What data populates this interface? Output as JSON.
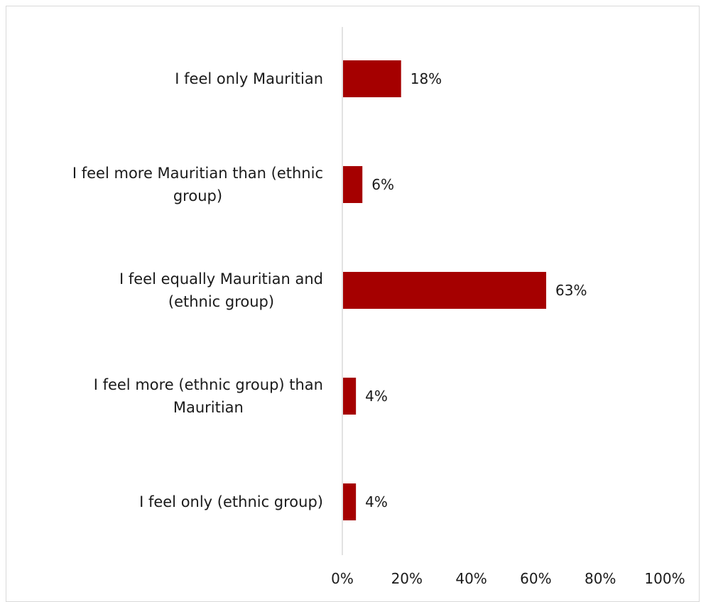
{
  "chart_data": {
    "type": "bar",
    "orientation": "horizontal",
    "categories": [
      "I feel only Mauritian",
      "I feel more Mauritian than (ethnic group)",
      "I feel equally Mauritian and (ethnic group)",
      "I feel more (ethnic group) than Mauritian",
      "I feel only (ethnic group)"
    ],
    "category_lines": [
      [
        "I feel only Mauritian"
      ],
      [
        "I feel more Mauritian than (ethnic",
        "group)"
      ],
      [
        "I feel equally Mauritian and",
        "(ethnic group)"
      ],
      [
        "I feel more (ethnic group) than",
        "Mauritian"
      ],
      [
        "I feel only (ethnic group)"
      ]
    ],
    "values": [
      18,
      6,
      63,
      4,
      4
    ],
    "data_labels": [
      "18%",
      "6%",
      "63%",
      "4%",
      "4%"
    ],
    "xlim": [
      0,
      100
    ],
    "xticks": [
      0,
      20,
      40,
      60,
      80,
      100
    ],
    "xtick_labels": [
      "0%",
      "20%",
      "40%",
      "60%",
      "80%",
      "100%"
    ],
    "title": "",
    "xlabel": "",
    "ylabel": "",
    "grid": false,
    "legend": "none",
    "bar_color": "#a50000",
    "axis_color": "#d9d9d9"
  }
}
